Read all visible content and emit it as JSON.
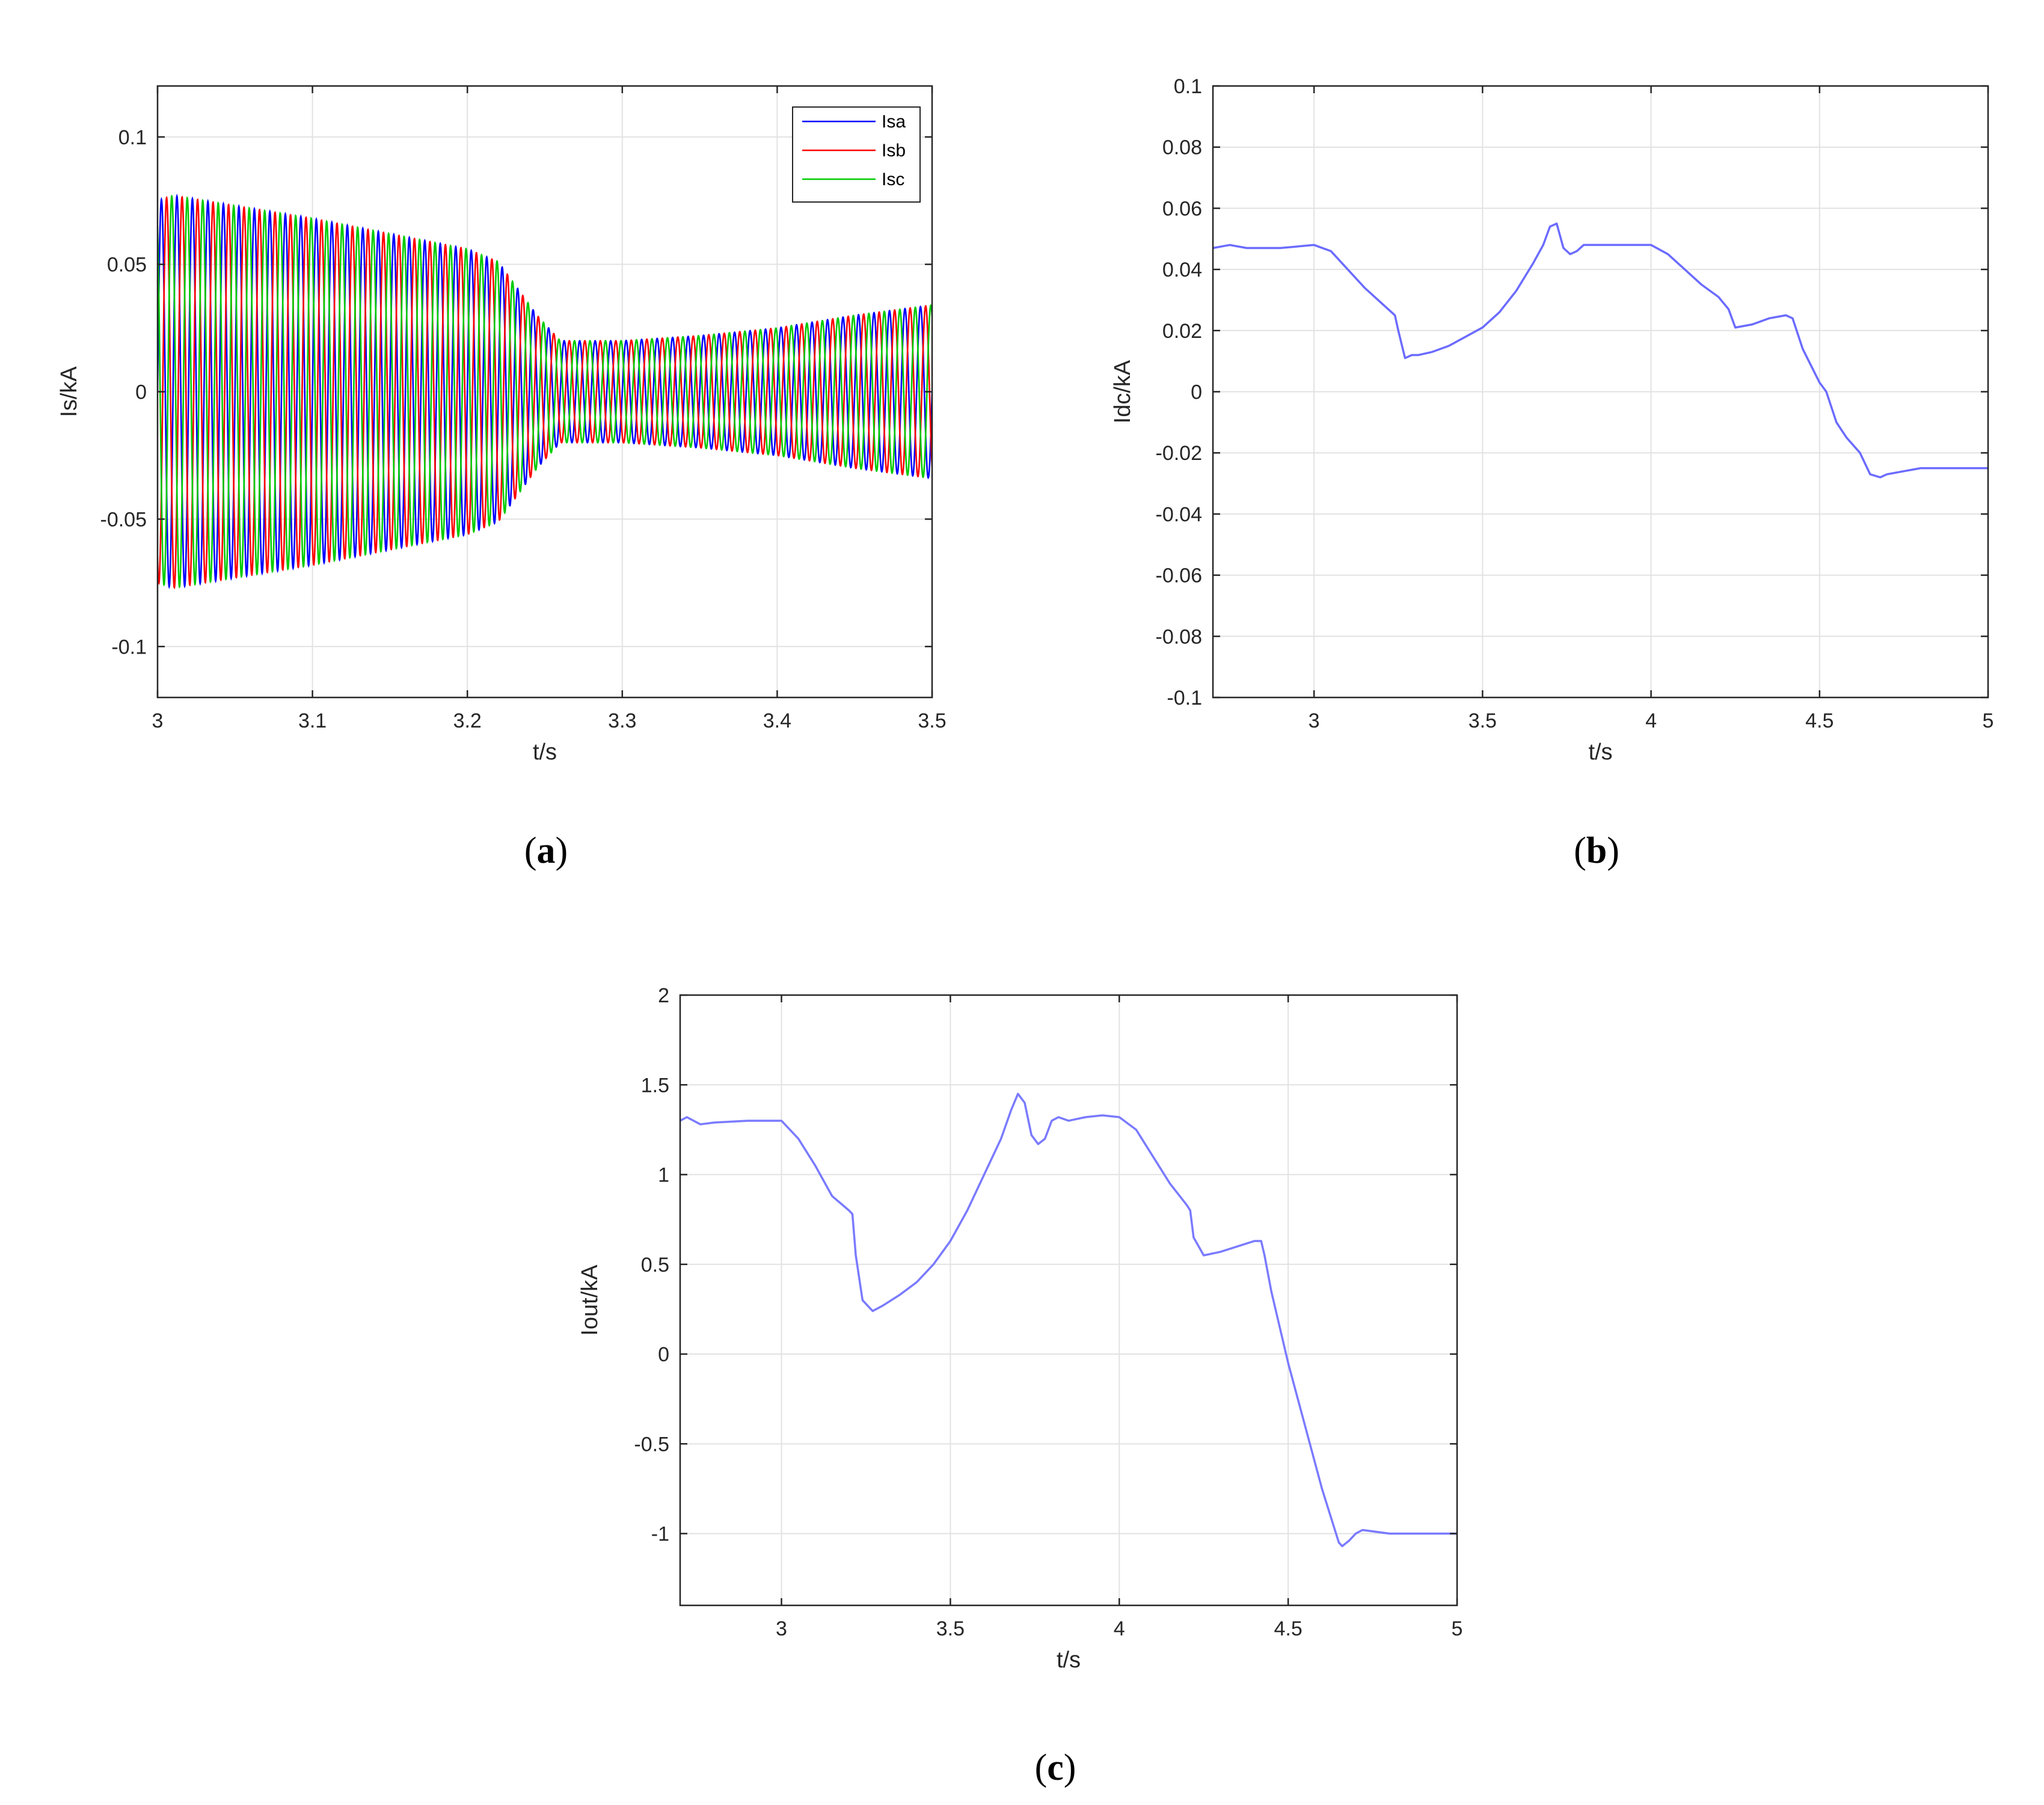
{
  "chart_data": [
    {
      "type": "line",
      "caption_letter": "a",
      "xlabel": "t/s",
      "ylabel": "Is/kA",
      "xlim": [
        3,
        3.5
      ],
      "ylim": [
        -0.12,
        0.12
      ],
      "xticks": [
        3,
        3.1,
        3.2,
        3.3,
        3.4,
        3.5
      ],
      "xtick_labels": [
        "3",
        "3.1",
        "3.2",
        "3.3",
        "3.4",
        "3.5"
      ],
      "yticks": [
        -0.1,
        -0.05,
        0,
        0.05,
        0.1
      ],
      "ytick_labels": [
        "-0.1",
        "-0.05",
        "0",
        "0.05",
        "0.1"
      ],
      "grid": true,
      "legend": "top-right",
      "signal": {
        "kind": "three-phase sinusoid",
        "frequency_hz": 100,
        "amplitude_envelope": {
          "t": [
            3.0,
            3.01,
            3.1,
            3.2,
            3.22,
            3.245,
            3.26,
            3.3,
            3.35,
            3.4,
            3.45,
            3.5
          ],
          "amp": [
            0.075,
            0.077,
            0.068,
            0.056,
            0.051,
            0.03,
            0.02,
            0.02,
            0.022,
            0.025,
            0.03,
            0.034
          ]
        }
      },
      "series": [
        {
          "name": "Isa",
          "color": "#0000ff",
          "phase_deg": 0
        },
        {
          "name": "Isb",
          "color": "#ff0000",
          "phase_deg": -120
        },
        {
          "name": "Isc",
          "color": "#00cc00",
          "phase_deg": 120
        }
      ]
    },
    {
      "type": "line",
      "caption_letter": "b",
      "xlabel": "t/s",
      "ylabel": "Idc/kA",
      "xlim": [
        2.7,
        5
      ],
      "ylim": [
        -0.1,
        0.1
      ],
      "xticks": [
        3,
        3.5,
        4,
        4.5,
        5
      ],
      "xtick_labels": [
        "3",
        "3.5",
        "4",
        "4.5",
        "5"
      ],
      "yticks": [
        -0.1,
        -0.08,
        -0.06,
        -0.04,
        -0.02,
        0,
        0.02,
        0.04,
        0.06,
        0.08,
        0.1
      ],
      "ytick_labels": [
        "-0.1",
        "-0.08",
        "-0.06",
        "-0.04",
        "-0.02",
        "0",
        "0.02",
        "0.04",
        "0.06",
        "0.08",
        "0.1"
      ],
      "grid": true,
      "series": [
        {
          "color": "#6b6bff",
          "x": [
            2.7,
            2.75,
            2.8,
            2.9,
            3.0,
            3.05,
            3.1,
            3.15,
            3.2,
            3.23,
            3.24,
            3.25,
            3.27,
            3.29,
            3.31,
            3.35,
            3.4,
            3.5,
            3.55,
            3.6,
            3.65,
            3.68,
            3.7,
            3.72,
            3.74,
            3.76,
            3.78,
            3.8,
            3.85,
            3.9,
            3.95,
            4.0,
            4.05,
            4.1,
            4.15,
            4.2,
            4.23,
            4.25,
            4.3,
            4.35,
            4.4,
            4.42,
            4.45,
            4.5,
            4.52,
            4.55,
            4.58,
            4.62,
            4.65,
            4.68,
            4.7,
            4.75,
            4.8,
            5.0
          ],
          "y": [
            0.047,
            0.048,
            0.047,
            0.047,
            0.048,
            0.046,
            0.04,
            0.034,
            0.029,
            0.026,
            0.025,
            0.02,
            0.011,
            0.012,
            0.012,
            0.013,
            0.015,
            0.021,
            0.026,
            0.033,
            0.042,
            0.048,
            0.054,
            0.055,
            0.047,
            0.045,
            0.046,
            0.048,
            0.048,
            0.048,
            0.048,
            0.048,
            0.045,
            0.04,
            0.035,
            0.031,
            0.027,
            0.021,
            0.022,
            0.024,
            0.025,
            0.024,
            0.014,
            0.003,
            0.0,
            -0.01,
            -0.015,
            -0.02,
            -0.027,
            -0.028,
            -0.027,
            -0.026,
            -0.025,
            -0.025
          ]
        }
      ]
    },
    {
      "type": "line",
      "caption_letter": "c",
      "xlabel": "t/s",
      "ylabel": "Iout/kA",
      "xlim": [
        2.7,
        5
      ],
      "ylim": [
        -1.4,
        2
      ],
      "xticks": [
        3,
        3.5,
        4,
        4.5,
        5
      ],
      "xtick_labels": [
        "3",
        "3.5",
        "4",
        "4.5",
        "5"
      ],
      "yticks": [
        -1,
        -0.5,
        0,
        0.5,
        1,
        1.5,
        2
      ],
      "ytick_labels": [
        "-1",
        "-0.5",
        "0",
        "0.5",
        "1",
        "1.5",
        "2"
      ],
      "grid": true,
      "series": [
        {
          "color": "#7a7aff",
          "x": [
            2.7,
            2.72,
            2.76,
            2.8,
            2.9,
            2.95,
            3.0,
            3.05,
            3.1,
            3.15,
            3.2,
            3.21,
            3.22,
            3.24,
            3.27,
            3.3,
            3.35,
            3.4,
            3.45,
            3.5,
            3.55,
            3.6,
            3.65,
            3.68,
            3.7,
            3.72,
            3.74,
            3.76,
            3.78,
            3.8,
            3.82,
            3.85,
            3.9,
            3.95,
            4.0,
            4.05,
            4.1,
            4.15,
            4.2,
            4.21,
            4.22,
            4.25,
            4.3,
            4.35,
            4.4,
            4.42,
            4.43,
            4.45,
            4.5,
            4.55,
            4.6,
            4.65,
            4.66,
            4.68,
            4.7,
            4.72,
            4.8,
            5.0
          ],
          "y": [
            1.3,
            1.32,
            1.28,
            1.29,
            1.3,
            1.3,
            1.3,
            1.2,
            1.05,
            0.88,
            0.8,
            0.78,
            0.55,
            0.3,
            0.24,
            0.27,
            0.33,
            0.4,
            0.5,
            0.63,
            0.8,
            1.0,
            1.2,
            1.36,
            1.45,
            1.4,
            1.22,
            1.17,
            1.2,
            1.3,
            1.32,
            1.3,
            1.32,
            1.33,
            1.32,
            1.25,
            1.1,
            0.95,
            0.83,
            0.8,
            0.65,
            0.55,
            0.57,
            0.6,
            0.63,
            0.63,
            0.55,
            0.35,
            -0.05,
            -0.4,
            -0.75,
            -1.05,
            -1.07,
            -1.04,
            -1.0,
            -0.98,
            -1.0,
            -1.0
          ]
        }
      ]
    }
  ]
}
